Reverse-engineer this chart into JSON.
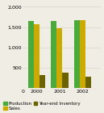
{
  "years": [
    "2000",
    "2001",
    "2002"
  ],
  "production": [
    1650,
    1650,
    1670
  ],
  "sales": [
    1580,
    1480,
    1680
  ],
  "inventory": [
    330,
    380,
    290
  ],
  "colors": {
    "production": "#4aaa3c",
    "sales": "#ccaa00",
    "inventory": "#6b6200"
  },
  "ylim": [
    0,
    2000
  ],
  "yticks": [
    500,
    1000,
    1500,
    2000
  ],
  "ytick_labels": [
    "500",
    "1,000",
    "1,500",
    "2,000"
  ],
  "xtick_labels": [
    "0",
    "2000",
    "2001",
    "2002"
  ],
  "background_color": "#f0ede4",
  "legend_labels": [
    "Production",
    "Sales",
    "Year-end Inventory"
  ],
  "bar_width": 0.25,
  "fontsize": 4.5,
  "grid_color": "#d8d5cc"
}
